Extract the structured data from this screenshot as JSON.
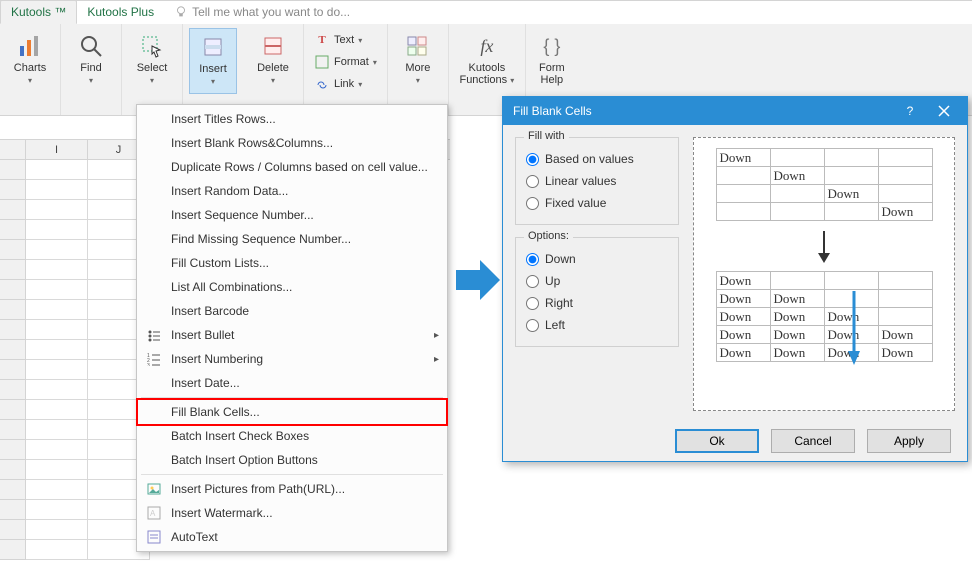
{
  "tabs": {
    "active": "Kutools ™",
    "other": "Kutools Plus",
    "tellme": "Tell me what you want to do..."
  },
  "ribbon": {
    "charts": "Charts",
    "find": "Find",
    "select": "Select",
    "insert": "Insert",
    "delete": "Delete",
    "text": "Text",
    "format": "Format",
    "link": "Link",
    "more": "More",
    "kfunc1": "Kutools",
    "kfunc2": "Functions",
    "formhelp": "Form\nHelp"
  },
  "columns": [
    "I",
    "J"
  ],
  "menu": [
    {
      "label": "Insert Titles Rows...",
      "icon": "",
      "sep": false
    },
    {
      "label": "Insert Blank Rows&Columns...",
      "icon": "",
      "sep": false
    },
    {
      "label": "Duplicate Rows / Columns based on cell value...",
      "icon": "",
      "sep": false
    },
    {
      "label": "Insert Random Data...",
      "icon": "",
      "sep": false
    },
    {
      "label": "Insert Sequence Number...",
      "icon": "",
      "sep": false
    },
    {
      "label": "Find Missing Sequence Number...",
      "icon": "",
      "sep": false
    },
    {
      "label": "Fill Custom Lists...",
      "icon": "",
      "sep": false
    },
    {
      "label": "List All Combinations...",
      "icon": "",
      "sep": false
    },
    {
      "label": "Insert Barcode",
      "icon": "",
      "sep": false
    },
    {
      "label": "Insert Bullet",
      "icon": "bullet",
      "sub": true,
      "sep": false
    },
    {
      "label": "Insert Numbering",
      "icon": "numbering",
      "sub": true,
      "sep": false
    },
    {
      "label": "Insert Date...",
      "icon": "",
      "sep": false
    },
    {
      "label": "Fill Blank Cells...",
      "icon": "",
      "sep": true,
      "highlight": true
    },
    {
      "label": "Batch Insert Check Boxes",
      "icon": "",
      "sep": false
    },
    {
      "label": "Batch Insert Option Buttons",
      "icon": "",
      "sep": false
    },
    {
      "label": "Insert Pictures from Path(URL)...",
      "icon": "pic",
      "sep": true
    },
    {
      "label": "Insert Watermark...",
      "icon": "watermark",
      "sep": false
    },
    {
      "label": "AutoText",
      "icon": "autotext",
      "sep": false
    }
  ],
  "dialog": {
    "title": "Fill Blank Cells",
    "fillwith_label": "Fill with",
    "fillwith": [
      {
        "label": "Based on values",
        "checked": true
      },
      {
        "label": "Linear values",
        "checked": false
      },
      {
        "label": "Fixed value",
        "checked": false
      }
    ],
    "options_label": "Options:",
    "options": [
      {
        "label": "Down",
        "checked": true
      },
      {
        "label": "Up",
        "checked": false
      },
      {
        "label": "Right",
        "checked": false
      },
      {
        "label": "Left",
        "checked": false
      }
    ],
    "preview_word": "Down",
    "top_grid": [
      [
        "Down",
        "",
        "",
        ""
      ],
      [
        "",
        "Down",
        "",
        ""
      ],
      [
        "",
        "",
        "Down",
        ""
      ],
      [
        "",
        "",
        "",
        "Down"
      ]
    ],
    "bottom_grid": [
      [
        "Down",
        "",
        "",
        ""
      ],
      [
        "Down",
        "Down",
        "",
        ""
      ],
      [
        "Down",
        "Down",
        "Down",
        ""
      ],
      [
        "Down",
        "Down",
        "Down",
        "Down"
      ],
      [
        "Down",
        "Down",
        "Down",
        "Down"
      ]
    ],
    "buttons": {
      "ok": "Ok",
      "cancel": "Cancel",
      "apply": "Apply"
    }
  },
  "colors": {
    "green": "#217346",
    "ribbon_bg": "#f1f1f1",
    "dlg_title": "#2a8dd4",
    "highlight_hover": "#cde6f7",
    "redbox": "#ff0000",
    "arrow_blue": "#2a8dd4"
  }
}
